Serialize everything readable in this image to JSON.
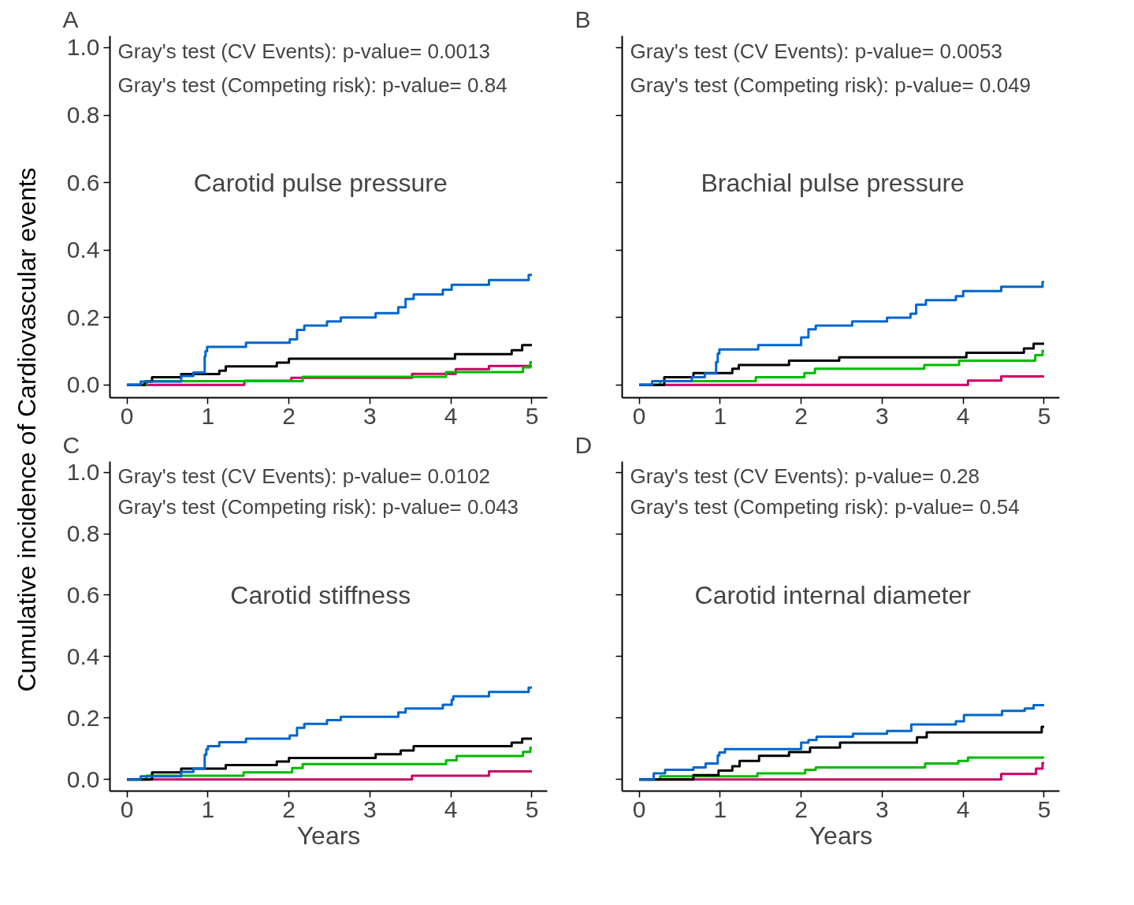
{
  "chart_data": [
    {
      "type": "step",
      "title": "A",
      "ylabel": "Cumulative incidence of Cardiovascular events",
      "xlim": [
        -0.21,
        5.19
      ],
      "ylim": [
        -0.038,
        1.035
      ],
      "xticks": [
        0,
        1,
        2,
        3,
        4,
        5
      ],
      "yticks": [
        {
          "value": 0,
          "label": "0.0"
        },
        {
          "value": 0.2,
          "label": "0.2"
        },
        {
          "value": 0.4,
          "label": "0.4"
        },
        {
          "value": 0.6,
          "label": "0.6"
        },
        {
          "value": 0.8,
          "label": "0.8"
        },
        {
          "value": 1,
          "label": "1.0"
        }
      ],
      "grid": false,
      "annotations": [
        "Gray's test (CV Events): p-value= 0.0013",
        "Gray's test (Competing risk): p-value= 0.84",
        "Carotid pulse pressure"
      ],
      "series": [
        {
          "color": "#cc0066",
          "x": [
            0,
            1.45,
            2.03,
            3.52,
            4.06,
            4.47,
            5
          ],
          "values": [
            0,
            0.012,
            0.021,
            0.033,
            0.047,
            0.056,
            0.056
          ]
        },
        {
          "color": "#00bb00",
          "x": [
            0,
            0.24,
            2.17,
            3.94,
            4.89,
            4.98,
            5
          ],
          "values": [
            0,
            0.011,
            0.024,
            0.038,
            0.052,
            0.067,
            0.067
          ]
        },
        {
          "color": "#000000",
          "x": [
            0,
            0.22,
            0.31,
            0.67,
            1.14,
            1.22,
            1.85,
            2.0,
            4.05,
            4.75,
            4.88,
            5
          ],
          "values": [
            0,
            0.01,
            0.023,
            0.032,
            0.042,
            0.055,
            0.066,
            0.078,
            0.091,
            0.103,
            0.118,
            0.118
          ]
        },
        {
          "color": "#0066cc",
          "x": [
            0,
            0.17,
            0.67,
            0.82,
            0.96,
            0.97,
            0.99,
            1.47,
            2.01,
            2.1,
            2.19,
            2.47,
            2.64,
            3.07,
            3.35,
            3.44,
            3.54,
            3.9,
            4.01,
            4.47,
            4.96,
            5
          ],
          "values": [
            0,
            0.01,
            0.026,
            0.037,
            0.085,
            0.1,
            0.113,
            0.125,
            0.135,
            0.163,
            0.176,
            0.188,
            0.2,
            0.213,
            0.23,
            0.255,
            0.268,
            0.282,
            0.297,
            0.311,
            0.326,
            0.326
          ]
        }
      ]
    },
    {
      "type": "step",
      "title": "B",
      "xlim": [
        -0.21,
        5.19
      ],
      "ylim": [
        -0.038,
        1.035
      ],
      "xticks": [
        0,
        1,
        2,
        3,
        4,
        5
      ],
      "yticks": [
        0,
        0.2,
        0.4,
        0.6,
        0.8,
        1
      ],
      "tick_labels": "x",
      "grid": false,
      "annotations": [
        "Gray's test (CV Events): p-value= 0.0053",
        "Gray's test (Competing risk): p-value= 0.049",
        "Brachial pulse pressure"
      ],
      "series": [
        {
          "color": "#cc0066",
          "x": [
            0,
            4.06,
            4.47,
            5
          ],
          "values": [
            0,
            0.013,
            0.025,
            0.025
          ]
        },
        {
          "color": "#00bb00",
          "x": [
            0,
            0.26,
            1.44,
            2.04,
            2.17,
            3.52,
            3.95,
            4.89,
            4.98,
            5
          ],
          "values": [
            0,
            0.011,
            0.023,
            0.035,
            0.048,
            0.059,
            0.072,
            0.088,
            0.101,
            0.101
          ]
        },
        {
          "color": "#000000",
          "x": [
            0,
            0.31,
            0.67,
            1.15,
            1.23,
            1.85,
            2.47,
            4.04,
            4.75,
            4.87,
            5
          ],
          "values": [
            0,
            0.023,
            0.035,
            0.048,
            0.059,
            0.072,
            0.082,
            0.095,
            0.108,
            0.122,
            0.122
          ]
        },
        {
          "color": "#0066cc",
          "x": [
            0,
            0.16,
            0.65,
            0.81,
            0.95,
            0.97,
            0.99,
            1.47,
            2.0,
            2.09,
            2.18,
            2.63,
            3.06,
            3.35,
            3.42,
            3.54,
            3.91,
            4.0,
            4.47,
            4.98,
            5
          ],
          "values": [
            0,
            0.011,
            0.023,
            0.034,
            0.068,
            0.093,
            0.105,
            0.118,
            0.141,
            0.165,
            0.176,
            0.188,
            0.199,
            0.211,
            0.238,
            0.251,
            0.263,
            0.278,
            0.291,
            0.305,
            0.305
          ]
        }
      ]
    },
    {
      "type": "step",
      "title": "C",
      "xlabel": "Years",
      "xlim": [
        -0.21,
        5.19
      ],
      "ylim": [
        -0.038,
        1.035
      ],
      "xticks": [
        0,
        1,
        2,
        3,
        4,
        5
      ],
      "yticks": [
        {
          "value": 0,
          "label": "0.0"
        },
        {
          "value": 0.2,
          "label": "0.2"
        },
        {
          "value": 0.4,
          "label": "0.4"
        },
        {
          "value": 0.6,
          "label": "0.6"
        },
        {
          "value": 0.8,
          "label": "0.8"
        },
        {
          "value": 1,
          "label": "1.0"
        }
      ],
      "grid": false,
      "annotations": [
        "Gray's test (CV Events): p-value= 0.0102",
        "Gray's test (Competing risk): p-value= 0.043",
        "Carotid stiffness"
      ],
      "series": [
        {
          "color": "#cc0066",
          "x": [
            0,
            3.52,
            4.47,
            5
          ],
          "values": [
            0,
            0.012,
            0.026,
            0.026
          ]
        },
        {
          "color": "#00bb00",
          "x": [
            0,
            0.24,
            1.44,
            2.04,
            2.17,
            3.94,
            4.07,
            4.89,
            4.98,
            5
          ],
          "values": [
            0,
            0.012,
            0.023,
            0.037,
            0.05,
            0.062,
            0.076,
            0.09,
            0.103,
            0.103
          ]
        },
        {
          "color": "#000000",
          "x": [
            0,
            0.31,
            0.67,
            1.22,
            1.85,
            2.0,
            3.07,
            3.38,
            3.54,
            4.75,
            4.88,
            5
          ],
          "values": [
            0,
            0.023,
            0.035,
            0.047,
            0.058,
            0.07,
            0.082,
            0.094,
            0.108,
            0.12,
            0.133,
            0.133
          ]
        },
        {
          "color": "#0066cc",
          "x": [
            0,
            0.17,
            0.67,
            0.82,
            0.96,
            0.98,
            1.0,
            1.14,
            1.47,
            2.01,
            2.1,
            2.19,
            2.47,
            2.64,
            3.35,
            3.44,
            3.9,
            4.01,
            4.03,
            4.47,
            4.96,
            5
          ],
          "values": [
            0,
            0.01,
            0.024,
            0.035,
            0.081,
            0.098,
            0.108,
            0.121,
            0.133,
            0.143,
            0.168,
            0.181,
            0.193,
            0.204,
            0.218,
            0.231,
            0.243,
            0.26,
            0.271,
            0.285,
            0.299,
            0.299
          ]
        }
      ]
    },
    {
      "type": "step",
      "title": "D",
      "xlabel": "Years",
      "xlim": [
        -0.21,
        5.19
      ],
      "ylim": [
        -0.038,
        1.035
      ],
      "xticks": [
        0,
        1,
        2,
        3,
        4,
        5
      ],
      "yticks": [
        0,
        0.2,
        0.4,
        0.6,
        0.8,
        1
      ],
      "tick_labels": "x",
      "grid": false,
      "annotations": [
        "Gray's test (CV Events): p-value= 0.28",
        "Gray's test (Competing risk): p-value= 0.54",
        "Carotid internal diameter"
      ],
      "series": [
        {
          "color": "#cc0066",
          "x": [
            0,
            4.47,
            4.9,
            4.98,
            5
          ],
          "values": [
            0,
            0.018,
            0.035,
            0.053,
            0.053
          ]
        },
        {
          "color": "#00bb00",
          "x": [
            0,
            0.26,
            1.46,
            2.05,
            2.18,
            3.53,
            3.94,
            4.06,
            5
          ],
          "values": [
            0,
            0.01,
            0.02,
            0.031,
            0.039,
            0.052,
            0.06,
            0.071,
            0.071
          ]
        },
        {
          "color": "#000000",
          "x": [
            0,
            0.67,
            0.98,
            1.15,
            1.24,
            1.48,
            1.85,
            2.11,
            2.48,
            3.43,
            3.55,
            4.97,
            5
          ],
          "values": [
            0,
            0.014,
            0.029,
            0.043,
            0.06,
            0.077,
            0.089,
            0.104,
            0.12,
            0.137,
            0.153,
            0.171,
            0.171
          ]
        },
        {
          "color": "#0066cc",
          "x": [
            0,
            0.18,
            0.32,
            0.67,
            0.82,
            0.97,
            0.99,
            1.06,
            2.0,
            2.09,
            2.19,
            2.64,
            3.06,
            3.36,
            3.91,
            4.01,
            4.48,
            4.76,
            4.87,
            5
          ],
          "values": [
            0,
            0.02,
            0.031,
            0.039,
            0.052,
            0.078,
            0.088,
            0.099,
            0.12,
            0.128,
            0.139,
            0.149,
            0.158,
            0.179,
            0.189,
            0.21,
            0.223,
            0.231,
            0.242,
            0.242
          ]
        }
      ]
    }
  ]
}
